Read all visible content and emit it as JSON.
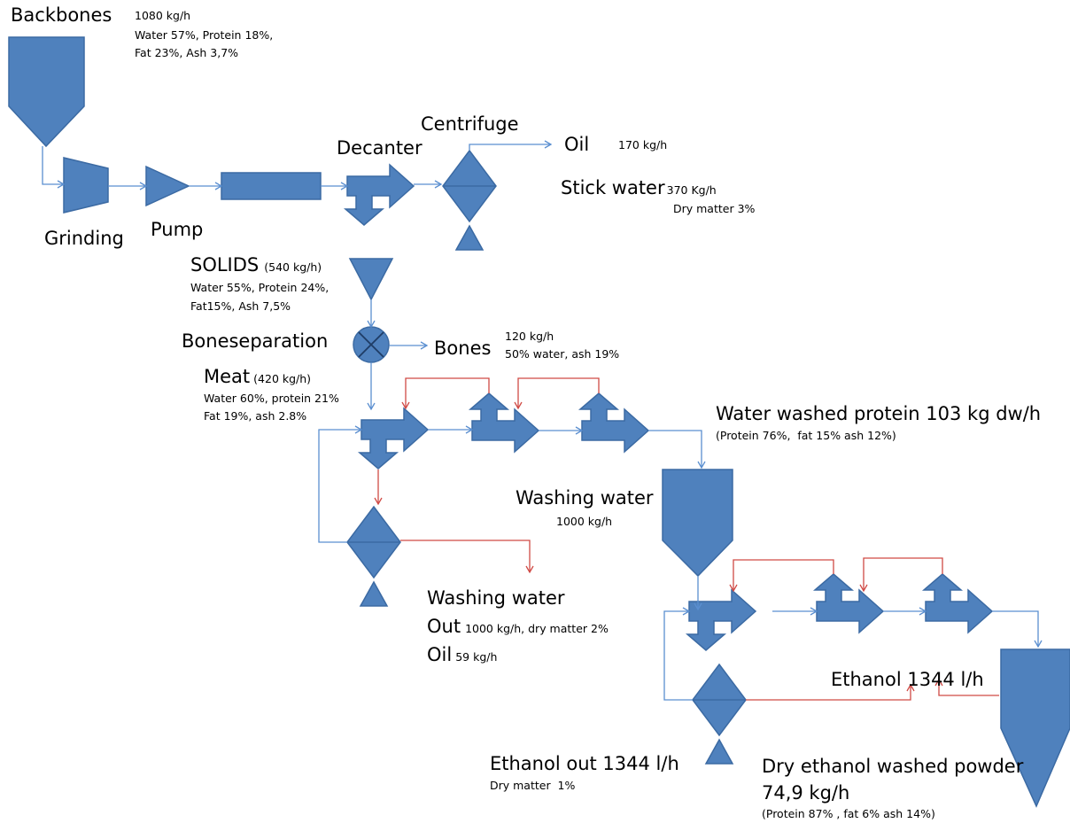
{
  "backbones": {
    "name": "Backbones",
    "flow": "1080 kg/h",
    "composition": [
      "Water 57%, Protein 18%,",
      "Fat 23%, Ash 3,7%"
    ]
  },
  "units": {
    "grinding": "Grinding",
    "pump": "Pump",
    "decanter": "Decanter",
    "centrifuge": "Centrifuge",
    "boneseparation": "Boneseparation"
  },
  "oil": {
    "name": "Oil",
    "flow": "170 kg/h"
  },
  "stick_water": {
    "name": "Stick water",
    "flow": "370 Kg/h",
    "composition": "Dry matter 3%"
  },
  "solids": {
    "name": "SOLIDS",
    "flow": "(540 kg/h)",
    "composition": [
      "Water 55%, Protein 24%,",
      "Fat15%, Ash 7,5%"
    ]
  },
  "bones": {
    "name": "Bones",
    "flow": "120 kg/h",
    "composition": "50% water, ash 19%"
  },
  "meat": {
    "name": "Meat",
    "flow": "(420 kg/h)",
    "composition": [
      "Water 60%, protein 21%",
      "Fat 19%, ash 2.8%"
    ]
  },
  "water_washed_protein": {
    "name": "Water washed protein 103 kg dw/h",
    "composition": "(Protein 76%,  fat 15% ash 12%)"
  },
  "washing_water_in": {
    "name": "Washing water",
    "flow": "1000 kg/h"
  },
  "washing_water_out": {
    "name": "Washing water",
    "out": "Out",
    "flow": "1000 kg/h, dry matter 2%",
    "oil": "Oil",
    "oil_flow": "59 kg/h"
  },
  "ethanol_in": {
    "name": "Ethanol 1344 l/h"
  },
  "ethanol_out": {
    "name": "Ethanol out 1344 l/h",
    "composition": "Dry matter  1%"
  },
  "dry_powder": {
    "name": "Dry ethanol washed powder",
    "flow": "74,9 kg/h",
    "composition": "(Protein 87% , fat 6% ash 14%)"
  }
}
